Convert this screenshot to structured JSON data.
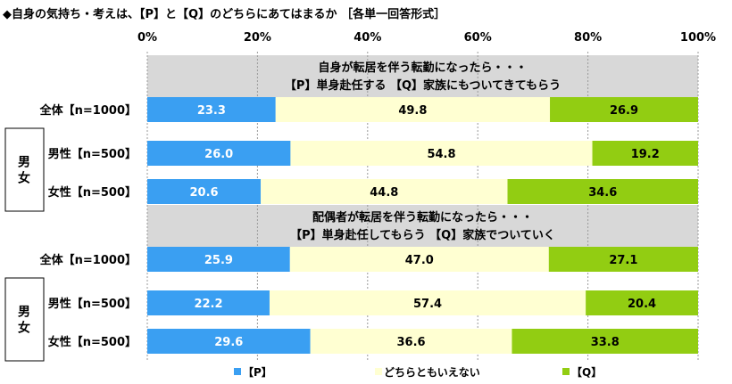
{
  "chart_data": {
    "type": "bar",
    "stacked": true,
    "orientation": "horizontal",
    "title": "◆自身の気持ち・考えは、【P】と【Q】のどちらにあてはまるか ［各単一回答形式］",
    "xlim": [
      0,
      100
    ],
    "x_ticks": [
      "0%",
      "20%",
      "40%",
      "60%",
      "80%",
      "100%"
    ],
    "grid": true,
    "legend_position": "bottom",
    "colors": {
      "P": "#3a9ff2",
      "neutral": "#ffffd2",
      "Q": "#92cd12",
      "panel": "#d8d8d8",
      "label_text_light": "#ffffff",
      "label_text_dark": "#000000"
    },
    "legend": [
      "【P】",
      "どちらともいえない",
      "【Q】"
    ],
    "group_label": "男女",
    "sections": [
      {
        "question_line1": "自身が転居を伴う転勤になったら・・・",
        "question_line2": "【P】単身赴任する 【Q】家族にもついてきてもらう",
        "rows": [
          {
            "label": "全体【n=1000】",
            "values": [
              23.3,
              49.8,
              26.9
            ]
          },
          {
            "label": "男性【n=500】",
            "values": [
              26.0,
              54.8,
              19.2
            ]
          },
          {
            "label": "女性【n=500】",
            "values": [
              20.6,
              44.8,
              34.6
            ]
          }
        ]
      },
      {
        "question_line1": "配偶者が転居を伴う転勤になったら・・・",
        "question_line2": "【P】単身赴任してもらう 【Q】家族でついていく",
        "rows": [
          {
            "label": "全体【n=1000】",
            "values": [
              25.9,
              47.0,
              27.1
            ]
          },
          {
            "label": "男性【n=500】",
            "values": [
              22.2,
              57.4,
              20.4
            ]
          },
          {
            "label": "女性【n=500】",
            "values": [
              29.6,
              36.6,
              33.8
            ]
          }
        ]
      }
    ]
  }
}
